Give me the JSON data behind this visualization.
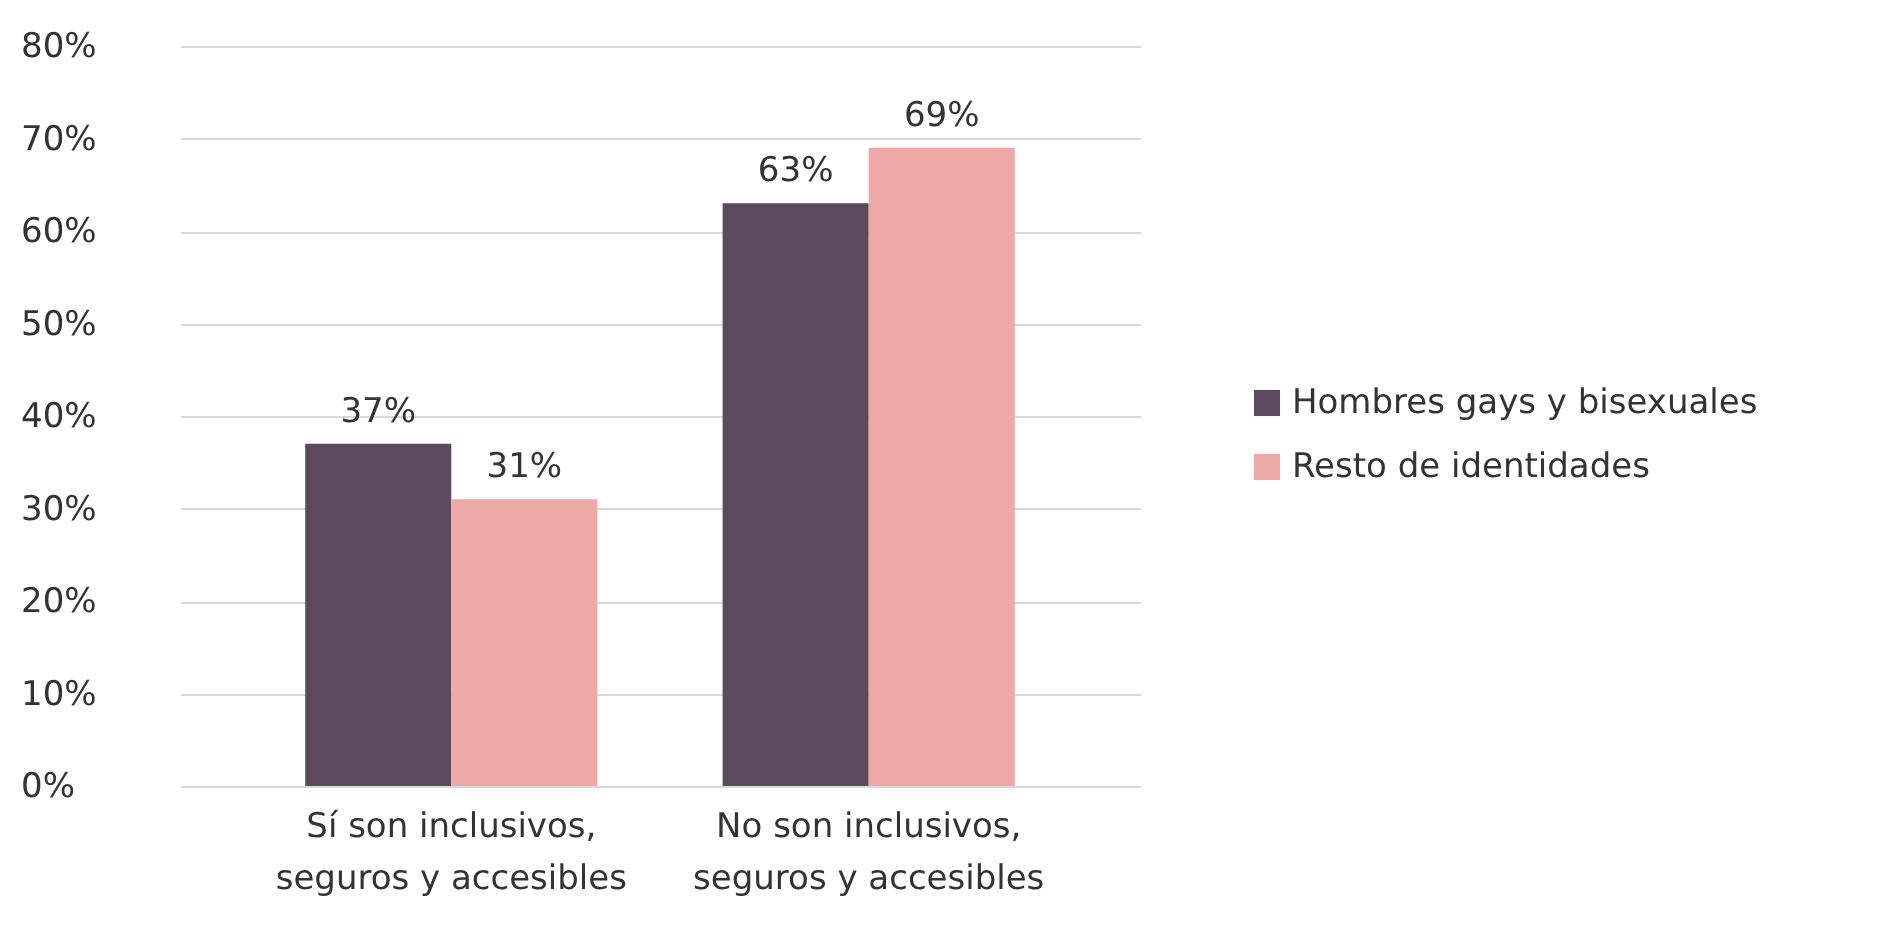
{
  "chart_data": {
    "type": "bar",
    "categories": [
      "Sí son inclusivos, seguros y accesibles",
      "No son inclusivos, seguros y accesibles"
    ],
    "series": [
      {
        "name": "Hombres gays y bisexuales",
        "color": "#5a4a5c",
        "values": [
          37,
          63
        ],
        "value_labels": [
          "37%",
          "63%"
        ]
      },
      {
        "name": "Resto de identidades",
        "color": "#eea8a5",
        "values": [
          31,
          69
        ],
        "value_labels": [
          "31%",
          "69%"
        ]
      }
    ],
    "ylim": [
      0,
      80
    ],
    "yticks": [
      {
        "value": 0,
        "label": "0%"
      },
      {
        "value": 10,
        "label": "10%"
      },
      {
        "value": 20,
        "label": "20%"
      },
      {
        "value": 30,
        "label": "30%"
      },
      {
        "value": 40,
        "label": "40%"
      },
      {
        "value": 50,
        "label": "50%"
      },
      {
        "value": 60,
        "label": "60%"
      },
      {
        "value": 70,
        "label": "70%"
      },
      {
        "value": 80,
        "label": "80%"
      }
    ],
    "grid": "y",
    "legend": "right"
  }
}
